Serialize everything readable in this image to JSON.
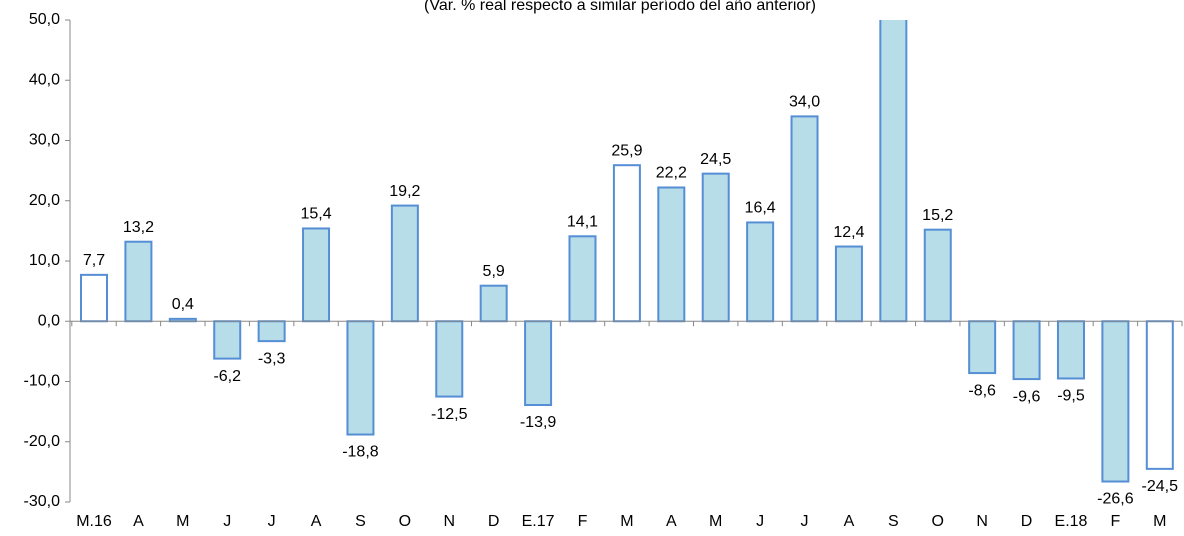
{
  "chart_data": {
    "type": "bar",
    "subtitle": "(Var. % real respecto a similar período del año anterior)",
    "categories": [
      "M.16",
      "A",
      "M",
      "J",
      "J",
      "A",
      "S",
      "O",
      "N",
      "D",
      "E.17",
      "F",
      "M",
      "A",
      "M",
      "J",
      "J",
      "A",
      "S",
      "O",
      "N",
      "D",
      "E.18",
      "F",
      "M"
    ],
    "values": [
      7.7,
      13.2,
      0.4,
      -6.2,
      -3.3,
      15.4,
      -18.8,
      19.2,
      -12.5,
      5.9,
      -13.9,
      14.1,
      25.9,
      22.2,
      24.5,
      16.4,
      34.0,
      12.4,
      55,
      15.2,
      -8.6,
      -9.6,
      -9.5,
      -26.6,
      -24.5
    ],
    "value_labels": [
      "7,7",
      "13,2",
      "0,4",
      "-6,2",
      "-3,3",
      "15,4",
      "-18,8",
      "19,2",
      "-12,5",
      "5,9",
      "-13,9",
      "14,1",
      "25,9",
      "22,2",
      "24,5",
      "16,4",
      "34,0",
      "12,4",
      null,
      "15,2",
      "-8,6",
      "-9,6",
      "-9,5",
      "-26,6",
      "-24,5"
    ],
    "colors": [
      "#ffffff",
      "#b7dde8",
      "#b7dde8",
      "#b7dde8",
      "#b7dde8",
      "#b7dde8",
      "#b7dde8",
      "#b7dde8",
      "#b7dde8",
      "#b7dde8",
      "#b7dde8",
      "#b7dde8",
      "#ffffff",
      "#b7dde8",
      "#b7dde8",
      "#b7dde8",
      "#b7dde8",
      "#b7dde8",
      "#b7dde8",
      "#b7dde8",
      "#b7dde8",
      "#b7dde8",
      "#b7dde8",
      "#b7dde8",
      "#ffffff"
    ],
    "edge_color": "#558ed5",
    "ylim": [
      -30,
      50
    ],
    "yticks": [
      {
        "value": -30,
        "label": "-30,0"
      },
      {
        "value": -20,
        "label": "-20,0"
      },
      {
        "value": -10,
        "label": "-10,0"
      },
      {
        "value": 0,
        "label": "0,0"
      },
      {
        "value": 10,
        "label": "10,0"
      },
      {
        "value": 20,
        "label": "20,0"
      },
      {
        "value": 30,
        "label": "30,0"
      },
      {
        "value": 40,
        "label": "40,0"
      },
      {
        "value": 50,
        "label": "50,0"
      }
    ]
  }
}
